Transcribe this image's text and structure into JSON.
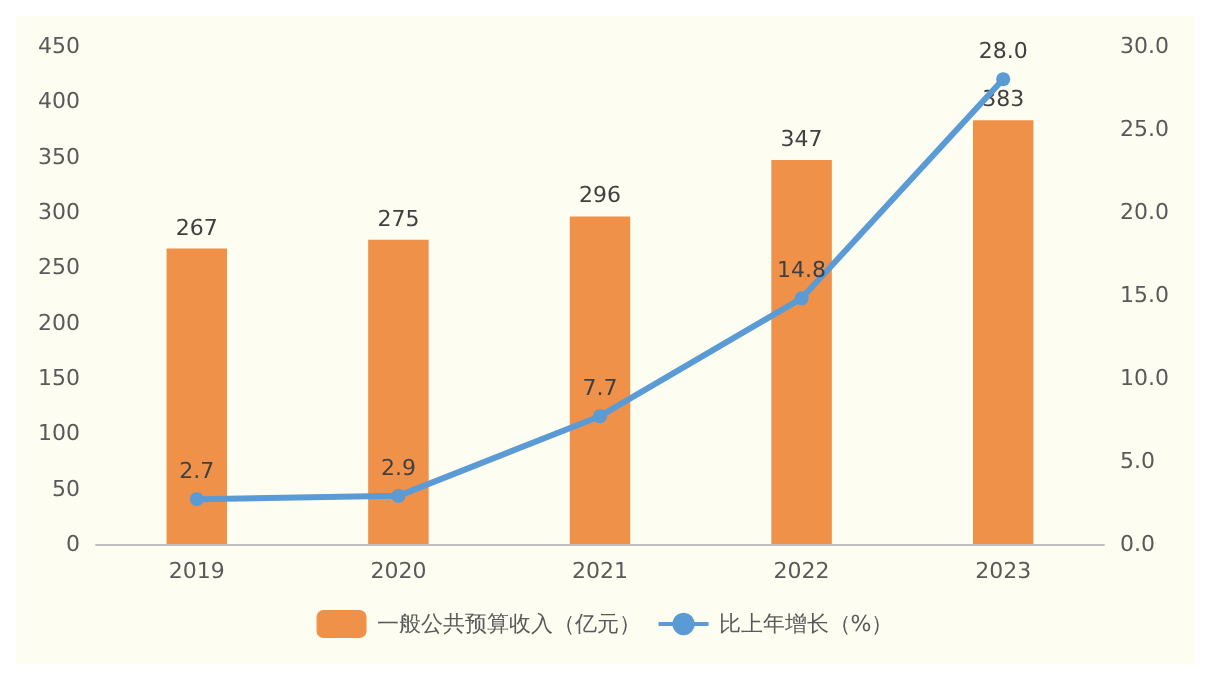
{
  "chart_data": {
    "type": "bar",
    "categories": [
      "2019",
      "2020",
      "2021",
      "2022",
      "2023"
    ],
    "series": [
      {
        "name": "一般公共预算收入（亿元）",
        "color": "#f0914a",
        "values": [
          267,
          275,
          296,
          347,
          383
        ],
        "value_labels": [
          "267",
          "275",
          "296",
          "347",
          "383"
        ]
      },
      {
        "name": "比上年增长（%）",
        "type": "line",
        "axis": "y2",
        "color": "#5b9bd5",
        "values": [
          2.7,
          2.9,
          7.7,
          14.8,
          28.0
        ],
        "value_labels": [
          "2.7",
          "2.9",
          "7.7",
          "14.8",
          "28.0"
        ]
      }
    ],
    "ylim": [
      0,
      450
    ],
    "yticks": [
      0,
      50,
      100,
      150,
      200,
      250,
      300,
      350,
      400,
      450
    ],
    "y2lim": [
      0,
      30
    ],
    "y2ticks": [
      {
        "value": 0,
        "label": "0.0"
      },
      {
        "value": 5,
        "label": "5.0"
      },
      {
        "value": 10,
        "label": "10.0"
      },
      {
        "value": 15,
        "label": "15.0"
      },
      {
        "value": 20,
        "label": "20.0"
      },
      {
        "value": 25,
        "label": "25.0"
      },
      {
        "value": 30,
        "label": "30.0"
      }
    ],
    "grid": false,
    "legend": "bottom",
    "marker": "circle"
  }
}
